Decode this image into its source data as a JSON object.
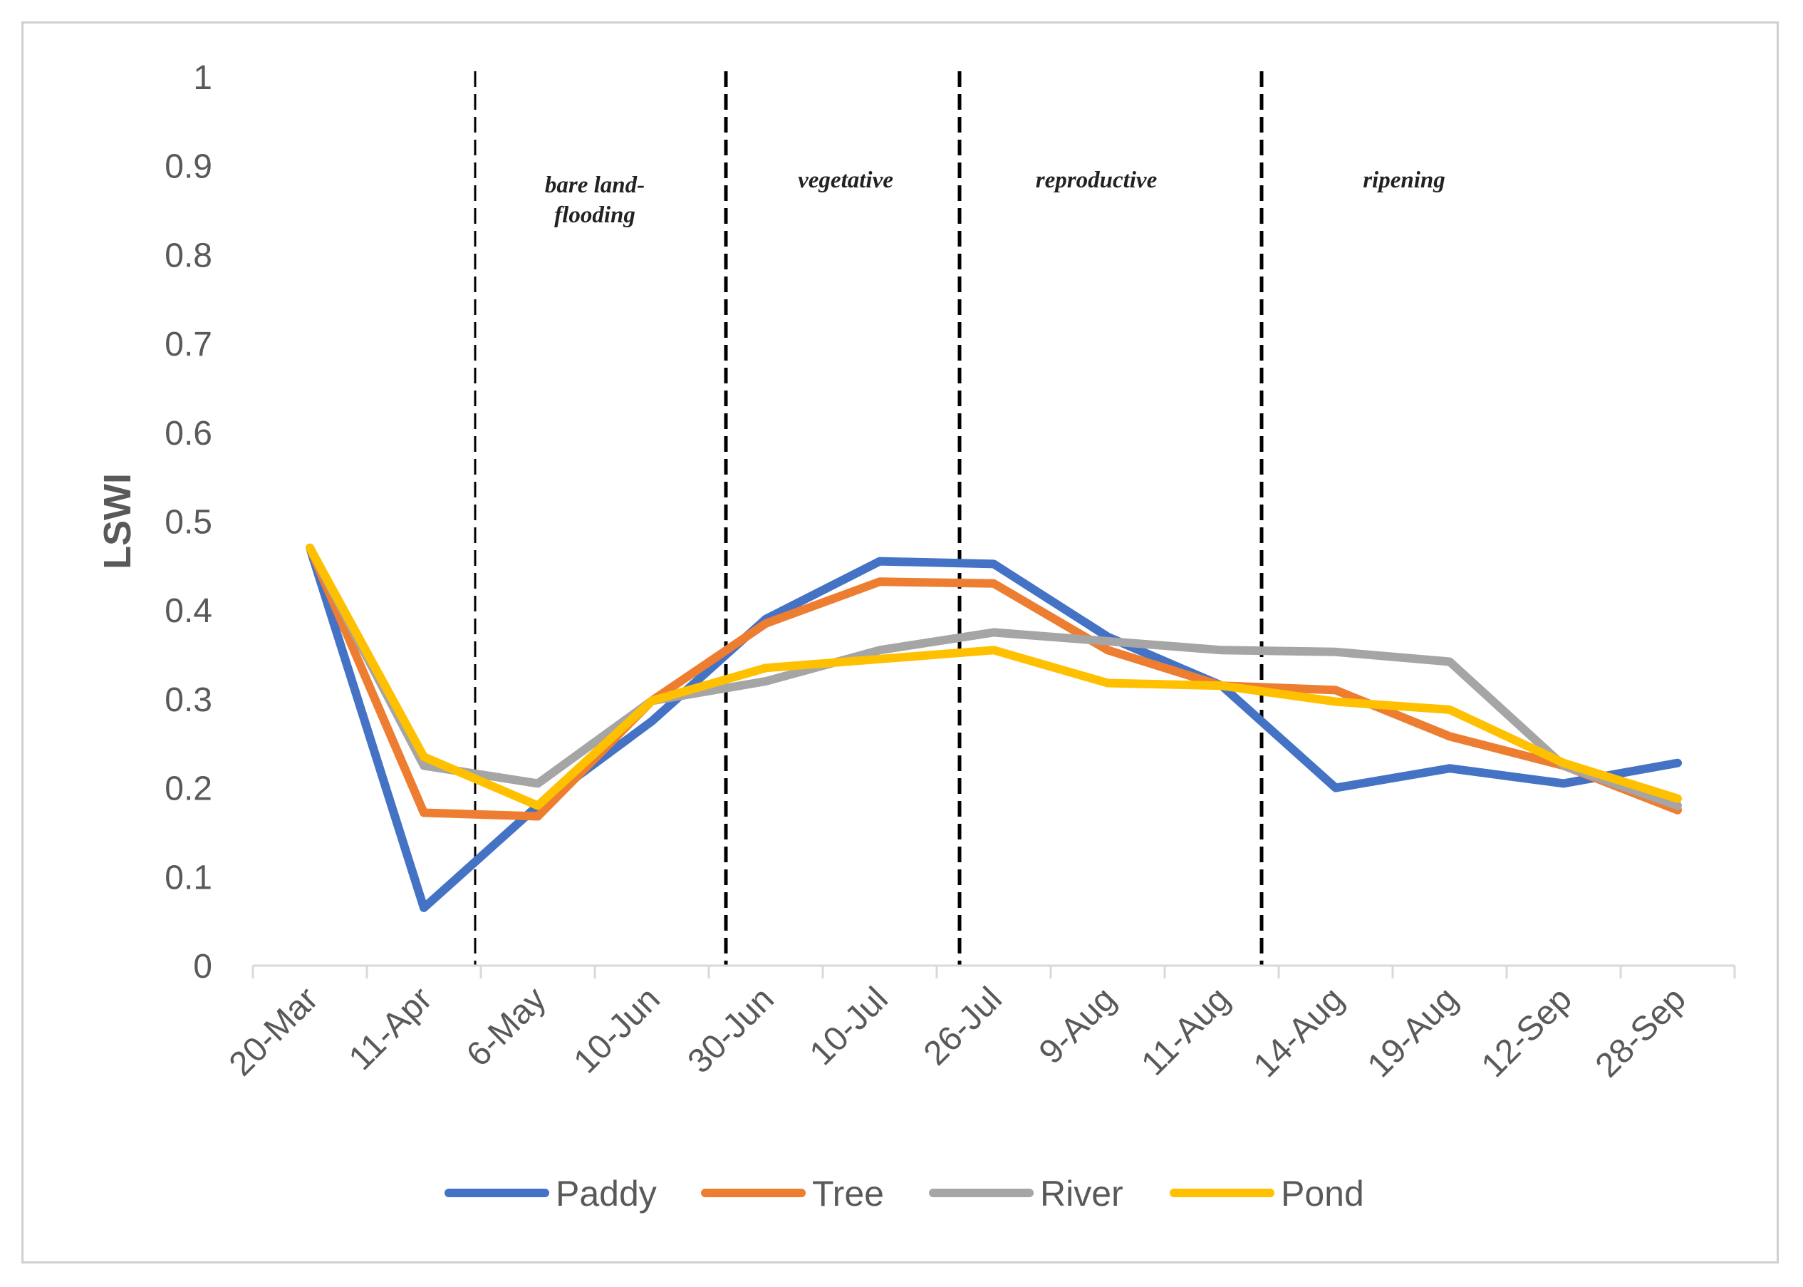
{
  "chart_data": {
    "type": "line",
    "title": "",
    "xlabel": "",
    "ylabel": "LSWI",
    "ylim": [
      0,
      1
    ],
    "yticks": [
      "0",
      "0.1",
      "0.2",
      "0.3",
      "0.4",
      "0.5",
      "0.6",
      "0.7",
      "0.8",
      "0.9",
      "1"
    ],
    "categories": [
      "20-Mar",
      "11-Apr",
      "6-May",
      "10-Jun",
      "30-Jun",
      "10-Jul",
      "26-Jul",
      "9-Aug",
      "11-Aug",
      "14-Aug",
      "19-Aug",
      "12-Sep",
      "28-Sep"
    ],
    "series": [
      {
        "name": "Paddy",
        "color": "#4472c4",
        "values": [
          0.47,
          0.065,
          0.18,
          0.275,
          0.39,
          0.455,
          0.452,
          0.37,
          0.315,
          0.2,
          0.222,
          0.205,
          0.228
        ]
      },
      {
        "name": "Tree",
        "color": "#ed7d31",
        "values": [
          0.47,
          0.172,
          0.168,
          0.298,
          0.385,
          0.432,
          0.43,
          0.355,
          0.315,
          0.31,
          0.258,
          0.225,
          0.175
        ]
      },
      {
        "name": "River",
        "color": "#a5a5a5",
        "values": [
          0.47,
          0.225,
          0.205,
          0.298,
          0.32,
          0.355,
          0.375,
          0.365,
          0.355,
          0.353,
          0.342,
          0.225,
          0.18
        ]
      },
      {
        "name": "Pond",
        "color": "#ffc000",
        "values": [
          0.47,
          0.235,
          0.18,
          0.298,
          0.335,
          0.345,
          0.355,
          0.318,
          0.315,
          0.297,
          0.288,
          0.228,
          0.188
        ]
      }
    ],
    "stage_boundaries": [
      1.45,
      3.65,
      5.7,
      8.35
    ],
    "stages": [
      {
        "lines": [
          "bare land-",
          "flooding"
        ],
        "at": 2.5
      },
      {
        "lines": [
          "vegetative"
        ],
        "at": 4.7
      },
      {
        "lines": [
          "reproductive"
        ],
        "at": 6.9
      },
      {
        "lines": [
          "ripening"
        ],
        "at": 9.6
      }
    ],
    "legend_position": "bottom"
  }
}
